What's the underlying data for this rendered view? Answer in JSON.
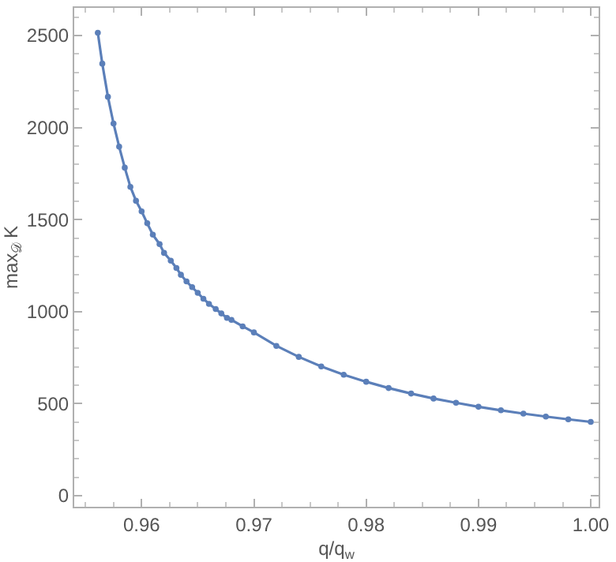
{
  "chart_data": {
    "type": "line",
    "xlabel": "q/q$_{w}$",
    "ylabel": "max$_{𝒟}$ K",
    "x": [
      0.9561,
      0.9565,
      0.957,
      0.9575,
      0.958,
      0.9585,
      0.959,
      0.9595,
      0.96,
      0.9605,
      0.961,
      0.9616,
      0.962,
      0.9626,
      0.9631,
      0.9635,
      0.964,
      0.9645,
      0.965,
      0.9655,
      0.966,
      0.9666,
      0.9671,
      0.9676,
      0.968,
      0.969,
      0.97,
      0.972,
      0.974,
      0.976,
      0.978,
      0.98,
      0.982,
      0.984,
      0.986,
      0.988,
      0.99,
      0.992,
      0.994,
      0.996,
      0.998,
      1.0
    ],
    "series": [
      {
        "color": "#5b7fb9",
        "values": [
          2515,
          2347,
          2167,
          2022,
          1896,
          1782,
          1678,
          1602,
          1545,
          1480,
          1418,
          1367,
          1319,
          1277,
          1237,
          1200,
          1164,
          1133,
          1102,
          1070,
          1042,
          1014,
          990,
          966,
          955,
          920,
          887,
          814,
          754,
          702,
          657,
          619,
          585,
          555,
          528,
          505,
          483,
          464,
          446,
          430,
          415,
          401
        ]
      }
    ],
    "xlim": [
      0.954,
      1.0007
    ],
    "xticks": [
      {
        "value": 0.96,
        "label": "0.96"
      },
      {
        "value": 0.97,
        "label": "0.97"
      },
      {
        "value": 0.98,
        "label": "0.98"
      },
      {
        "value": 0.99,
        "label": "0.99"
      },
      {
        "value": 1.0,
        "label": "1.00"
      }
    ],
    "ylim": [
      -60,
      2650
    ],
    "yticks": [
      0,
      500,
      1000,
      1500,
      2000,
      2500
    ],
    "marker": "circle",
    "line_style": "solid"
  }
}
